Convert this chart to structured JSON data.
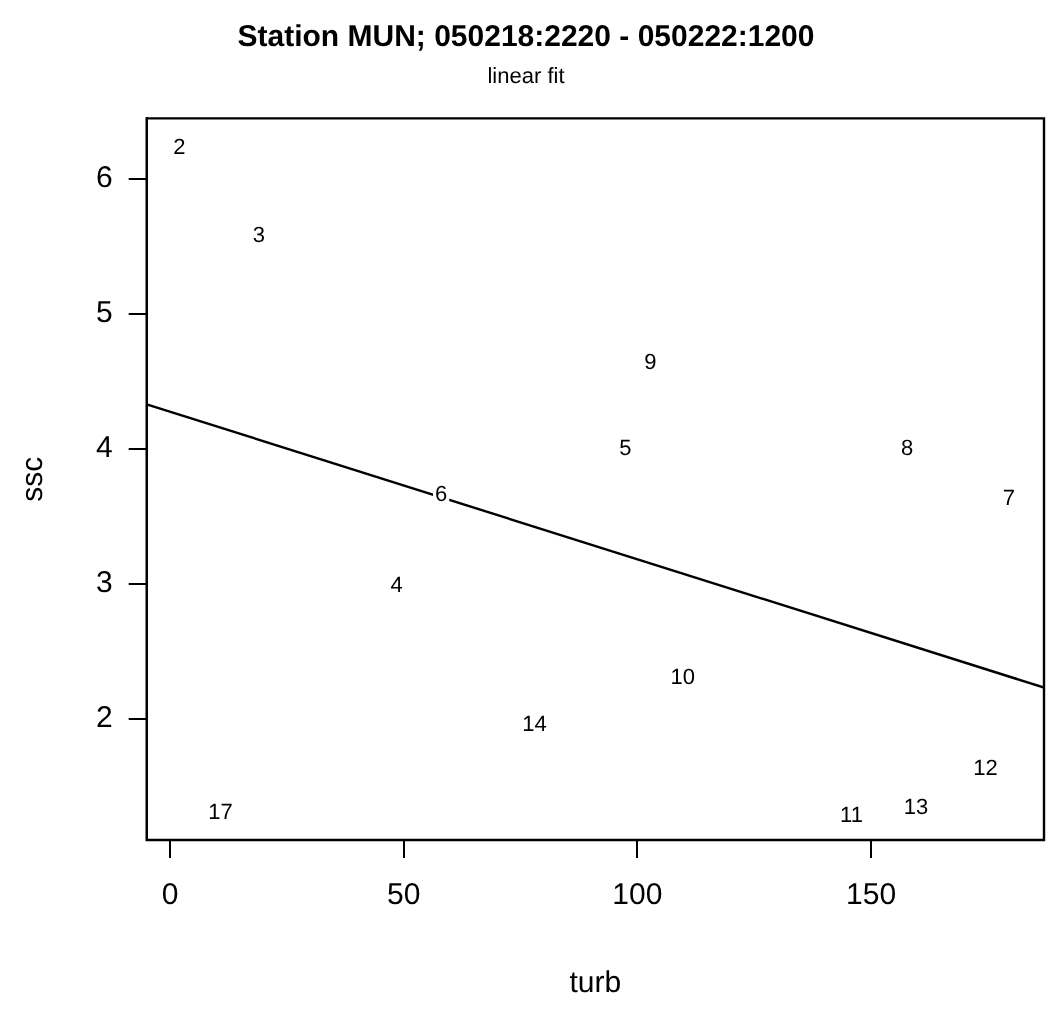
{
  "chart_data": {
    "type": "scatter",
    "title": "Station MUN; 050218:2220 - 050222:1200",
    "subtitle": "linear fit",
    "xlabel": "turb",
    "ylabel": "ssc",
    "xlim": [
      -5,
      187
    ],
    "xticks": [
      0,
      50,
      100,
      150
    ],
    "ylim": [
      1.1,
      6.45
    ],
    "yticks": [
      2,
      3,
      4,
      5,
      6
    ],
    "grid": false,
    "series": [
      {
        "type": "line",
        "color": "#000000",
        "x": [
          -5,
          187
        ],
        "values": [
          4.33,
          2.23
        ]
      }
    ],
    "annotations": [
      {
        "text": "2",
        "x": 2,
        "y": 6.23
      },
      {
        "text": "3",
        "x": 19,
        "y": 5.58
      },
      {
        "text": "4",
        "x": 48.5,
        "y": 2.98
      },
      {
        "text": "5",
        "x": 97.4,
        "y": 4.0
      },
      {
        "text": "6",
        "x": 58,
        "y": 3.66
      },
      {
        "text": "7",
        "x": 179.5,
        "y": 3.63
      },
      {
        "text": "8",
        "x": 157.7,
        "y": 4.0
      },
      {
        "text": "9",
        "x": 102.8,
        "y": 4.64
      },
      {
        "text": "10",
        "x": 109.7,
        "y": 2.3
      },
      {
        "text": "11",
        "x": 145.8,
        "y": 1.28
      },
      {
        "text": "12",
        "x": 174.5,
        "y": 1.63
      },
      {
        "text": "13",
        "x": 159.6,
        "y": 1.34
      },
      {
        "text": "14",
        "x": 78,
        "y": 1.95
      },
      {
        "text": "17",
        "x": 10.8,
        "y": 1.3
      }
    ]
  }
}
